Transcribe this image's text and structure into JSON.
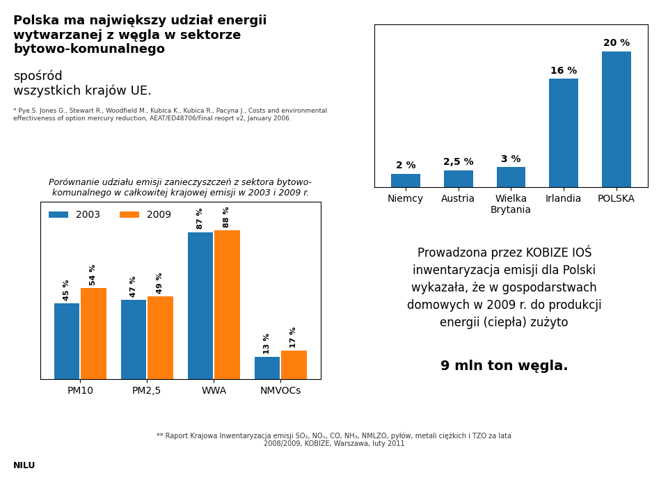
{
  "chart_data": [
    {
      "type": "bar",
      "title": "Polska ma największy udział energii\nwytwarzanej z węgla w sektorze\nbytowo-komunalnego",
      "subtitle": "spośród\nwszystkich krajów UE.",
      "categories": [
        "Niemcy",
        "Austria",
        "Wielka\nBrytania",
        "Irlandia",
        "POLSKA"
      ],
      "values": [
        2,
        2.5,
        3,
        16,
        20
      ],
      "value_labels": [
        "2 %",
        "2,5 %",
        "3 %",
        "16 %",
        "20 %"
      ],
      "data_labels": true,
      "ylim": [
        0,
        24
      ],
      "tick_labels": "x",
      "annotations": [
        "* Pye.S. Jones G., Stewart R., Woodfield M., Kubica K., Kubica R., Pacyna J., Costs and environmental\neffectiveness of option mercury reduction, AEAT/ED48706/Final reoprt v2, January 2006."
      ]
    },
    {
      "type": "bar",
      "title": "Porównanie udziału emisji zanieczyszczeń z sektora bytowo-\nkomunalnego w całkowitej krajowej emisji w 2003 i 2009 r.",
      "categories": [
        "PM10",
        "PM2,5",
        "WWA",
        "NMVOCs"
      ],
      "series": [
        {
          "name": "2003",
          "values": [
            45,
            47,
            87,
            13
          ],
          "value_labels": [
            "45 %",
            "47 %",
            "87 %",
            "13 %"
          ]
        },
        {
          "name": "2009",
          "values": [
            54,
            49,
            88,
            17
          ],
          "value_labels": [
            "54 %",
            "49 %",
            "88 %",
            "17 %"
          ]
        }
      ],
      "data_labels": true,
      "ylim": [
        0,
        105
      ],
      "tick_labels": "x",
      "legend": "upper left",
      "annotations": [
        "Prowadzona przez KOBIZE IOŚ\ninwentaryzacja emisji dla Polski\nwykazała, że w gospodarstwach\ndomowych w 2009 r. do produkcji\nenergii (ciepła) zużyto",
        "9 mln ton węgla.",
        "** Raport Krajowa Inwentaryzacja emisji SO₂, NOₓ, CO, NH₃, NMLZO, pyłów, metali ciężkich i TZO za lata\n2008/2009, KOBIZE, Warszawa, luty 2011",
        "NILU"
      ]
    }
  ]
}
